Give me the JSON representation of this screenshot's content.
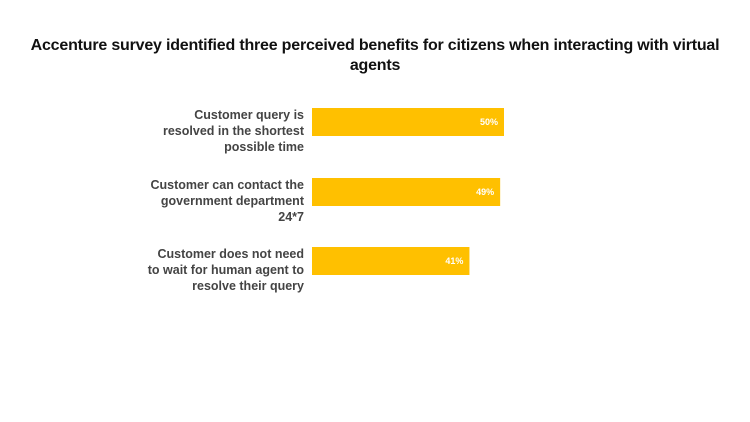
{
  "chart_data": {
    "type": "bar",
    "orientation": "horizontal",
    "title": "Accenture survey identified three perceived benefits for citizens when interacting with virtual agents",
    "categories": [
      [
        "Customer query is",
        "resolved in the shortest",
        "possible time"
      ],
      [
        "Customer can contact the",
        "government department",
        "24*7"
      ],
      [
        "Customer does not need",
        "to wait for human agent to",
        "resolve their query"
      ]
    ],
    "values": [
      50,
      49,
      41
    ],
    "value_labels": [
      "50%",
      "49%",
      "41%"
    ],
    "bar_color": "#FFC000",
    "value_label_color": "#FFFFFF",
    "xlim": [
      0,
      100
    ],
    "grid": false,
    "legend": "none"
  }
}
